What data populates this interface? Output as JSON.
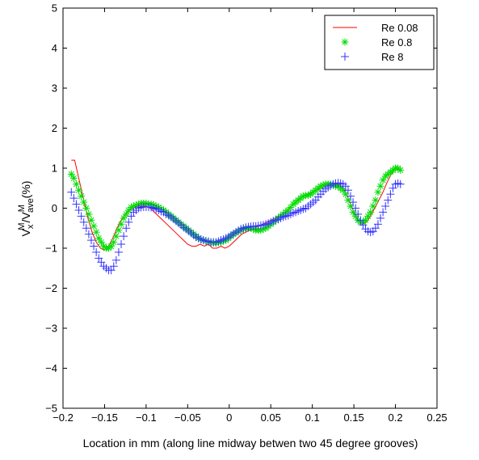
{
  "chart_data": {
    "type": "line",
    "title": "",
    "xlabel": "Location in mm (along line midway betwen two 45 degree grooves)",
    "ylabel": {
      "v1": "V",
      "sub1": "x",
      "sup1": "M",
      "slash": "/V",
      "sup2": "M",
      "sub2": "ave",
      "unit": "(%)"
    },
    "xlim": [
      -0.2,
      0.25
    ],
    "ylim": [
      -5,
      5
    ],
    "xticks": [
      -0.2,
      -0.15,
      -0.1,
      -0.05,
      0,
      0.05,
      0.1,
      0.15,
      0.2,
      0.25
    ],
    "xtick_labels": [
      "−0.2",
      "−0.15",
      "−0.1",
      "−0.05",
      "0",
      "0.05",
      "0.1",
      "0.15",
      "0.2",
      "0.25"
    ],
    "yticks": [
      -5,
      -4,
      -3,
      -2,
      -1,
      0,
      1,
      2,
      3,
      4,
      5
    ],
    "ytick_labels": [
      "−5",
      "−4",
      "−3",
      "−2",
      "−1",
      "0",
      "1",
      "2",
      "3",
      "4",
      "5"
    ],
    "legend_position": "top-right",
    "grid": false,
    "series": [
      {
        "name": "Re 0.08",
        "marker": "line",
        "color": "#ff0000",
        "x": [
          -0.19,
          -0.186,
          -0.18,
          -0.175,
          -0.17,
          -0.165,
          -0.16,
          -0.155,
          -0.15,
          -0.145,
          -0.14,
          -0.135,
          -0.13,
          -0.125,
          -0.12,
          -0.115,
          -0.11,
          -0.105,
          -0.1,
          -0.095,
          -0.09,
          -0.085,
          -0.08,
          -0.075,
          -0.07,
          -0.065,
          -0.06,
          -0.055,
          -0.05,
          -0.045,
          -0.04,
          -0.035,
          -0.03,
          -0.025,
          -0.02,
          -0.015,
          -0.01,
          -0.005,
          0,
          0.005,
          0.01,
          0.015,
          0.02,
          0.025,
          0.03,
          0.035,
          0.04,
          0.045,
          0.05,
          0.055,
          0.06,
          0.065,
          0.07,
          0.075,
          0.08,
          0.085,
          0.09,
          0.095,
          0.1,
          0.105,
          0.11,
          0.115,
          0.12,
          0.125,
          0.13,
          0.135,
          0.14,
          0.145,
          0.15,
          0.155,
          0.16,
          0.165,
          0.17,
          0.175,
          0.18,
          0.185,
          0.19,
          0.195,
          0.2,
          0.205
        ],
        "y": [
          1.2,
          1.2,
          0.65,
          0.2,
          -0.25,
          -0.6,
          -0.85,
          -1.0,
          -1.05,
          -0.95,
          -0.75,
          -0.5,
          -0.3,
          -0.15,
          -0.05,
          0.02,
          0.05,
          0.05,
          0.05,
          0.0,
          -0.1,
          -0.2,
          -0.3,
          -0.4,
          -0.5,
          -0.6,
          -0.7,
          -0.8,
          -0.9,
          -0.95,
          -0.95,
          -0.9,
          -0.95,
          -0.9,
          -1.0,
          -1.0,
          -0.95,
          -1.0,
          -0.95,
          -0.85,
          -0.75,
          -0.65,
          -0.6,
          -0.55,
          -0.5,
          -0.45,
          -0.4,
          -0.35,
          -0.3,
          -0.25,
          -0.2,
          -0.15,
          -0.05,
          0.05,
          0.15,
          0.25,
          0.3,
          0.35,
          0.4,
          0.45,
          0.5,
          0.55,
          0.58,
          0.6,
          0.6,
          0.55,
          0.4,
          0.15,
          -0.1,
          -0.3,
          -0.4,
          -0.35,
          -0.2,
          0.0,
          0.2,
          0.4,
          0.65,
          0.85,
          1.0,
          0.95
        ]
      },
      {
        "name": "Re 0.8",
        "marker": "star",
        "color": "#00dd00",
        "x": [
          -0.19,
          -0.187,
          -0.184,
          -0.181,
          -0.178,
          -0.175,
          -0.172,
          -0.169,
          -0.166,
          -0.163,
          -0.16,
          -0.157,
          -0.154,
          -0.151,
          -0.148,
          -0.145,
          -0.142,
          -0.139,
          -0.136,
          -0.133,
          -0.13,
          -0.127,
          -0.124,
          -0.121,
          -0.118,
          -0.115,
          -0.112,
          -0.109,
          -0.106,
          -0.103,
          -0.1,
          -0.097,
          -0.094,
          -0.091,
          -0.088,
          -0.085,
          -0.082,
          -0.079,
          -0.076,
          -0.073,
          -0.07,
          -0.067,
          -0.064,
          -0.061,
          -0.058,
          -0.055,
          -0.052,
          -0.049,
          -0.046,
          -0.043,
          -0.04,
          -0.037,
          -0.034,
          -0.031,
          -0.028,
          -0.025,
          -0.022,
          -0.019,
          -0.016,
          -0.013,
          -0.01,
          -0.007,
          -0.004,
          -0.001,
          0.002,
          0.005,
          0.008,
          0.011,
          0.014,
          0.017,
          0.02,
          0.023,
          0.026,
          0.029,
          0.032,
          0.035,
          0.038,
          0.041,
          0.044,
          0.047,
          0.05,
          0.053,
          0.056,
          0.059,
          0.062,
          0.065,
          0.068,
          0.071,
          0.074,
          0.077,
          0.08,
          0.083,
          0.086,
          0.089,
          0.092,
          0.095,
          0.098,
          0.101,
          0.104,
          0.107,
          0.11,
          0.113,
          0.116,
          0.119,
          0.122,
          0.125,
          0.128,
          0.131,
          0.134,
          0.137,
          0.14,
          0.143,
          0.146,
          0.149,
          0.152,
          0.155,
          0.158,
          0.161,
          0.164,
          0.167,
          0.17,
          0.173,
          0.176,
          0.179,
          0.182,
          0.185,
          0.188,
          0.191,
          0.194,
          0.197,
          0.2,
          0.203,
          0.206
        ],
        "y": [
          0.85,
          0.75,
          0.6,
          0.45,
          0.3,
          0.15,
          0.0,
          -0.15,
          -0.3,
          -0.45,
          -0.6,
          -0.75,
          -0.85,
          -0.95,
          -1.0,
          -1.0,
          -0.95,
          -0.85,
          -0.7,
          -0.55,
          -0.4,
          -0.25,
          -0.15,
          -0.05,
          0.02,
          0.05,
          0.08,
          0.1,
          0.12,
          0.12,
          0.12,
          0.1,
          0.1,
          0.08,
          0.05,
          0.02,
          -0.02,
          -0.05,
          -0.1,
          -0.15,
          -0.2,
          -0.25,
          -0.3,
          -0.35,
          -0.4,
          -0.45,
          -0.5,
          -0.55,
          -0.6,
          -0.65,
          -0.7,
          -0.75,
          -0.78,
          -0.8,
          -0.82,
          -0.85,
          -0.85,
          -0.87,
          -0.87,
          -0.85,
          -0.85,
          -0.82,
          -0.8,
          -0.75,
          -0.7,
          -0.65,
          -0.62,
          -0.58,
          -0.55,
          -0.52,
          -0.5,
          -0.5,
          -0.5,
          -0.52,
          -0.55,
          -0.55,
          -0.55,
          -0.52,
          -0.5,
          -0.45,
          -0.4,
          -0.35,
          -0.3,
          -0.25,
          -0.2,
          -0.15,
          -0.1,
          -0.05,
          0.02,
          0.1,
          0.15,
          0.2,
          0.25,
          0.3,
          0.32,
          0.32,
          0.35,
          0.4,
          0.45,
          0.5,
          0.55,
          0.58,
          0.6,
          0.6,
          0.6,
          0.58,
          0.55,
          0.55,
          0.5,
          0.45,
          0.35,
          0.2,
          0.05,
          -0.1,
          -0.2,
          -0.3,
          -0.35,
          -0.35,
          -0.3,
          -0.2,
          -0.1,
          0.05,
          0.2,
          0.4,
          0.55,
          0.7,
          0.8,
          0.85,
          0.9,
          0.95,
          1.0,
          1.0,
          0.95
        ]
      },
      {
        "name": "Re 8",
        "marker": "plus",
        "color": "#3333ff",
        "x": [
          -0.19,
          -0.187,
          -0.184,
          -0.181,
          -0.178,
          -0.175,
          -0.172,
          -0.169,
          -0.166,
          -0.163,
          -0.16,
          -0.157,
          -0.154,
          -0.151,
          -0.148,
          -0.145,
          -0.142,
          -0.139,
          -0.136,
          -0.133,
          -0.13,
          -0.127,
          -0.124,
          -0.121,
          -0.118,
          -0.115,
          -0.112,
          -0.109,
          -0.106,
          -0.103,
          -0.1,
          -0.097,
          -0.094,
          -0.091,
          -0.088,
          -0.085,
          -0.082,
          -0.079,
          -0.076,
          -0.073,
          -0.07,
          -0.067,
          -0.064,
          -0.061,
          -0.058,
          -0.055,
          -0.052,
          -0.049,
          -0.046,
          -0.043,
          -0.04,
          -0.037,
          -0.034,
          -0.031,
          -0.028,
          -0.025,
          -0.022,
          -0.019,
          -0.016,
          -0.013,
          -0.01,
          -0.007,
          -0.004,
          -0.001,
          0.002,
          0.005,
          0.008,
          0.011,
          0.014,
          0.017,
          0.02,
          0.023,
          0.026,
          0.029,
          0.032,
          0.035,
          0.038,
          0.041,
          0.044,
          0.047,
          0.05,
          0.053,
          0.056,
          0.059,
          0.062,
          0.065,
          0.068,
          0.071,
          0.074,
          0.077,
          0.08,
          0.083,
          0.086,
          0.089,
          0.092,
          0.095,
          0.098,
          0.101,
          0.104,
          0.107,
          0.11,
          0.113,
          0.116,
          0.119,
          0.122,
          0.125,
          0.128,
          0.131,
          0.134,
          0.137,
          0.14,
          0.143,
          0.146,
          0.149,
          0.152,
          0.155,
          0.158,
          0.161,
          0.164,
          0.167,
          0.17,
          0.173,
          0.176,
          0.179,
          0.182,
          0.185,
          0.188,
          0.191,
          0.194,
          0.197,
          0.2,
          0.203,
          0.206
        ],
        "y": [
          0.4,
          0.25,
          0.1,
          -0.05,
          -0.2,
          -0.35,
          -0.5,
          -0.65,
          -0.8,
          -0.95,
          -1.1,
          -1.25,
          -1.35,
          -1.45,
          -1.5,
          -1.55,
          -1.55,
          -1.45,
          -1.3,
          -1.1,
          -0.9,
          -0.7,
          -0.5,
          -0.35,
          -0.2,
          -0.1,
          -0.05,
          0.0,
          0.02,
          0.03,
          0.03,
          0.03,
          0.02,
          0.0,
          -0.02,
          -0.05,
          -0.08,
          -0.1,
          -0.15,
          -0.18,
          -0.22,
          -0.27,
          -0.32,
          -0.37,
          -0.42,
          -0.48,
          -0.52,
          -0.57,
          -0.62,
          -0.67,
          -0.72,
          -0.75,
          -0.78,
          -0.8,
          -0.82,
          -0.83,
          -0.85,
          -0.85,
          -0.85,
          -0.83,
          -0.8,
          -0.78,
          -0.75,
          -0.72,
          -0.68,
          -0.64,
          -0.6,
          -0.56,
          -0.52,
          -0.5,
          -0.48,
          -0.47,
          -0.46,
          -0.45,
          -0.45,
          -0.44,
          -0.43,
          -0.42,
          -0.4,
          -0.38,
          -0.35,
          -0.32,
          -0.3,
          -0.28,
          -0.25,
          -0.22,
          -0.2,
          -0.18,
          -0.15,
          -0.12,
          -0.1,
          -0.07,
          -0.05,
          -0.02,
          0.0,
          0.05,
          0.1,
          0.15,
          0.2,
          0.28,
          0.35,
          0.42,
          0.48,
          0.52,
          0.56,
          0.6,
          0.62,
          0.63,
          0.62,
          0.6,
          0.55,
          0.45,
          0.3,
          0.15,
          0.0,
          -0.15,
          -0.3,
          -0.42,
          -0.52,
          -0.58,
          -0.6,
          -0.58,
          -0.5,
          -0.4,
          -0.25,
          -0.1,
          0.05,
          0.2,
          0.35,
          0.5,
          0.6,
          0.62,
          0.6
        ]
      }
    ]
  }
}
